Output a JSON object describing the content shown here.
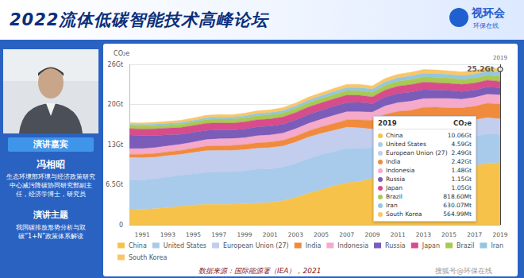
{
  "header": {
    "title": "2022流体低碳智能技术高峰论坛",
    "logo": "视环会",
    "logo_subtitle": "环保在线"
  },
  "speaker": {
    "badge": "演讲嘉宾",
    "name": "冯相昭",
    "bio": "生态环境部环境与经济政策研究中心减污降碳协同研究部副主任，经济学博士，研究员",
    "topic_heading": "演讲主题",
    "topic": "我国碳排放形势分析与双碳“1+N”政策体系解读"
  },
  "source": "数据来源：国际能源署（IEA），2021",
  "watermark": "搜狐号@环保在线",
  "chart_data": {
    "type": "area",
    "stacked": true,
    "grid": true,
    "legend": "bottom",
    "y_label": "CO₂e",
    "categories": [
      null,
      "1991",
      null,
      "1993",
      null,
      "1995",
      null,
      "1997",
      null,
      "1999",
      null,
      "2001",
      null,
      "2003",
      null,
      "2005",
      null,
      "2007",
      null,
      "2009",
      null,
      "2011",
      null,
      "2013",
      null,
      "2015",
      null,
      "2017",
      null,
      "2019"
    ],
    "ylim": [
      0,
      26
    ],
    "yticks": [
      0,
      {
        "value": 6.5,
        "label": "6.5Gt"
      },
      {
        "value": 13,
        "label": "13Gt"
      },
      {
        "value": 19.5,
        "label": "20Gt"
      },
      {
        "value": 26,
        "label": "26Gt"
      }
    ],
    "series": [
      {
        "name": "China",
        "color": "#f6c24a",
        "values": [
          2.4,
          2.5,
          2.6,
          2.8,
          3.0,
          3.2,
          3.3,
          3.3,
          3.3,
          3.4,
          3.5,
          3.6,
          3.9,
          4.4,
          5.1,
          5.7,
          6.3,
          6.8,
          7.0,
          7.5,
          8.1,
          8.8,
          9.1,
          9.5,
          9.5,
          9.4,
          9.4,
          9.6,
          9.9,
          10.06
        ]
      },
      {
        "name": "United States",
        "color": "#a9cbeb",
        "values": [
          4.8,
          4.75,
          4.85,
          4.95,
          5.0,
          5.05,
          5.2,
          5.3,
          5.3,
          5.35,
          5.5,
          5.45,
          5.45,
          5.5,
          5.6,
          5.65,
          5.55,
          5.6,
          5.4,
          5.0,
          5.2,
          5.05,
          4.85,
          4.95,
          4.95,
          4.85,
          4.75,
          4.7,
          4.85,
          4.59
        ]
      },
      {
        "name": "European Union (27)",
        "color": "#c3cdee",
        "values": [
          3.7,
          3.6,
          3.5,
          3.45,
          3.4,
          3.45,
          3.5,
          3.45,
          3.45,
          3.4,
          3.4,
          3.45,
          3.4,
          3.5,
          3.5,
          3.45,
          3.45,
          3.4,
          3.3,
          3.0,
          3.1,
          2.95,
          2.9,
          2.8,
          2.65,
          2.7,
          2.7,
          2.7,
          2.6,
          2.49
        ]
      },
      {
        "name": "India",
        "color": "#f08b3e",
        "values": [
          0.53,
          0.57,
          0.6,
          0.62,
          0.65,
          0.7,
          0.74,
          0.77,
          0.8,
          0.85,
          0.88,
          0.9,
          0.92,
          0.95,
          1.0,
          1.05,
          1.12,
          1.2,
          1.3,
          1.42,
          1.5,
          1.58,
          1.7,
          1.78,
          1.95,
          2.0,
          2.1,
          2.2,
          2.35,
          2.42
        ]
      },
      {
        "name": "Indonesia",
        "color": "#f5aacb",
        "values": [
          0.9,
          0.92,
          0.95,
          0.95,
          0.98,
          1.0,
          1.05,
          1.1,
          1.1,
          1.1,
          1.15,
          1.15,
          1.18,
          1.2,
          1.22,
          1.25,
          1.3,
          1.3,
          1.3,
          1.32,
          1.35,
          1.4,
          1.45,
          1.4,
          1.42,
          1.5,
          1.4,
          1.42,
          1.45,
          1.48
        ]
      },
      {
        "name": "Russia",
        "color": "#7b5cb9",
        "values": [
          2.2,
          2.1,
          1.95,
          1.8,
          1.6,
          1.55,
          1.5,
          1.45,
          1.4,
          1.42,
          1.43,
          1.44,
          1.43,
          1.45,
          1.45,
          1.45,
          1.5,
          1.5,
          1.52,
          1.4,
          1.45,
          1.5,
          1.5,
          1.45,
          1.35,
          1.3,
          1.25,
          1.2,
          1.18,
          1.15
        ]
      },
      {
        "name": "Japan",
        "color": "#d94c8c",
        "values": [
          1.06,
          1.08,
          1.1,
          1.09,
          1.13,
          1.14,
          1.15,
          1.15,
          1.12,
          1.15,
          1.17,
          1.16,
          1.18,
          1.19,
          1.2,
          1.2,
          1.19,
          1.22,
          1.15,
          1.08,
          1.13,
          1.17,
          1.22,
          1.24,
          1.2,
          1.17,
          1.15,
          1.14,
          1.1,
          1.05
        ]
      },
      {
        "name": "Brazil",
        "color": "#a9ca52",
        "values": [
          0.5,
          0.5,
          0.52,
          0.53,
          0.55,
          0.57,
          0.6,
          0.62,
          0.64,
          0.65,
          0.66,
          0.67,
          0.67,
          0.67,
          0.69,
          0.7,
          0.71,
          0.73,
          0.75,
          0.72,
          0.78,
          0.8,
          0.83,
          0.86,
          0.88,
          0.85,
          0.82,
          0.82,
          0.81,
          0.8186
        ]
      },
      {
        "name": "Iran",
        "color": "#93c6e2",
        "values": [
          0.2,
          0.21,
          0.23,
          0.24,
          0.26,
          0.27,
          0.28,
          0.29,
          0.31,
          0.32,
          0.33,
          0.35,
          0.37,
          0.39,
          0.42,
          0.45,
          0.47,
          0.49,
          0.51,
          0.53,
          0.54,
          0.55,
          0.56,
          0.57,
          0.59,
          0.58,
          0.6,
          0.62,
          0.63,
          0.63007
        ]
      },
      {
        "name": "South Korea",
        "color": "#f9c768",
        "values": [
          0.25,
          0.27,
          0.3,
          0.33,
          0.36,
          0.39,
          0.42,
          0.44,
          0.4,
          0.43,
          0.45,
          0.46,
          0.48,
          0.49,
          0.5,
          0.5,
          0.51,
          0.52,
          0.53,
          0.53,
          0.57,
          0.59,
          0.6,
          0.6,
          0.6,
          0.6,
          0.6,
          0.61,
          0.62,
          0.56499
        ]
      }
    ],
    "annotations": [
      {
        "x": "2019",
        "y": 25.2,
        "label": "25.2Gt"
      }
    ],
    "tooltip": {
      "title": "2019",
      "unit": "CO₂e",
      "value_labels": [
        "10.06Gt",
        "4.59Gt",
        "2.49Gt",
        "2.42Gt",
        "1.48Gt",
        "1.15Gt",
        "1.05Gt",
        "818.60Mt",
        "630.07Mt",
        "564.99Mt"
      ]
    }
  }
}
